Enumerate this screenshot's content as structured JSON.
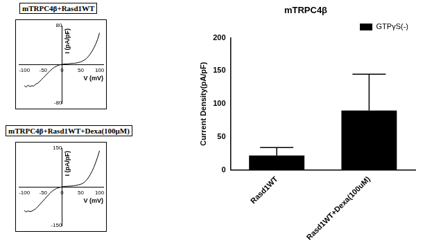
{
  "chart_data": [
    {
      "type": "line",
      "title": "mTRPC4β+Rasd1WT",
      "x_label": "V (mV)",
      "y_label": "I (pA/pF)",
      "x": [
        -100,
        -95,
        -90,
        -85,
        -80,
        -75,
        -70,
        -65,
        -60,
        -55,
        -50,
        -45,
        -40,
        -35,
        -30,
        -25,
        -20,
        -15,
        -10,
        -5,
        0,
        5,
        10,
        15,
        20,
        25,
        30,
        35,
        40,
        45,
        50,
        55,
        60,
        65,
        70,
        75,
        80,
        85,
        90,
        95,
        100
      ],
      "values": [
        -44,
        -47,
        -43,
        -46,
        -44,
        -45,
        -41,
        -39,
        -36,
        -32,
        -28,
        -24,
        -20,
        -16,
        -12,
        -9,
        -6,
        -4,
        -2,
        -1,
        0,
        0.5,
        1,
        1,
        1.5,
        2,
        2,
        2.5,
        3,
        4,
        5,
        7,
        9,
        12,
        16,
        21,
        27,
        34,
        42,
        52,
        65
      ],
      "color": "#000000",
      "xlim": [
        -115,
        110
      ],
      "xticks": [
        -100,
        -50,
        0,
        50,
        100
      ],
      "ylim": [
        -80,
        80
      ],
      "yticks": [
        -80,
        80
      ],
      "grid": false
    },
    {
      "type": "line",
      "title": "mTRPC4β+Rasd1WT+Dexa(100μM)",
      "x_label": "V (mV)",
      "y_label": "I (pA/pF)",
      "x": [
        -100,
        -95,
        -90,
        -85,
        -80,
        -75,
        -70,
        -65,
        -60,
        -55,
        -50,
        -45,
        -40,
        -35,
        -30,
        -25,
        -20,
        -15,
        -10,
        -5,
        0,
        5,
        10,
        15,
        20,
        25,
        30,
        35,
        40,
        45,
        50,
        55,
        60,
        65,
        70,
        75,
        80,
        85,
        90,
        95,
        100
      ],
      "values": [
        -92,
        -97,
        -93,
        -96,
        -94,
        -90,
        -85,
        -78,
        -70,
        -62,
        -54,
        -46,
        -38,
        -30,
        -22,
        -16,
        -11,
        -7,
        -4,
        -2,
        0,
        1,
        2,
        2,
        3,
        3,
        4,
        5,
        6,
        8,
        10,
        13,
        18,
        25,
        35,
        46,
        60,
        76,
        95,
        116,
        140
      ],
      "color": "#000000",
      "xlim": [
        -115,
        110
      ],
      "xticks": [
        -100,
        -50,
        0,
        50,
        100
      ],
      "ylim": [
        -150,
        150
      ],
      "yticks": [
        -150,
        150
      ],
      "grid": false
    },
    {
      "type": "bar",
      "title": "mTRPC4β",
      "y_label": "Current Density(pA/pF)",
      "categories": [
        "Rasd1WT",
        "Rasd1WT+Dexa(100uM)"
      ],
      "series": [
        {
          "name": "GTPγS(-)",
          "color": "#000000",
          "values": [
            22,
            90
          ],
          "errors": [
            12,
            55
          ]
        }
      ],
      "ylim": [
        0,
        200
      ],
      "yticks": [
        0,
        50,
        100,
        150,
        200
      ],
      "grid": false,
      "legend": "top right"
    }
  ]
}
